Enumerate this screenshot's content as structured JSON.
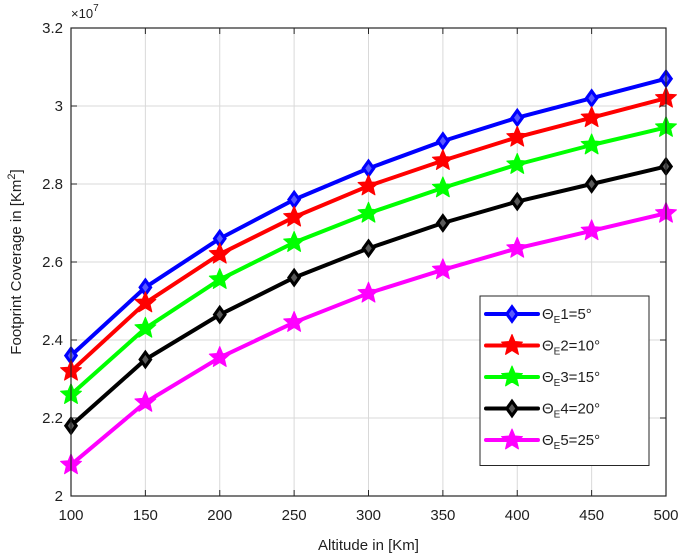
{
  "chart_data": {
    "type": "line",
    "x": [
      100,
      150,
      200,
      250,
      300,
      350,
      400,
      450,
      500
    ],
    "xlabel": "Altitude in [Km]",
    "ylabel_prefix": "Footprint Coverage in [Km",
    "ylabel_sup": "2",
    "ylabel_suffix": "]",
    "y_multiplier": {
      "base": "×10",
      "exponent": "7"
    },
    "xlim": [
      100,
      500
    ],
    "ylim": [
      2.0,
      3.2
    ],
    "xticks": [
      "100",
      "150",
      "200",
      "250",
      "300",
      "350",
      "400",
      "450",
      "500"
    ],
    "yticks": [
      "2",
      "2.2",
      "2.4",
      "2.6",
      "2.8",
      "3",
      "3.2"
    ],
    "grid": true,
    "legend_position": "lower-right",
    "series": [
      {
        "legend_prefix": "Θ",
        "legend_sub": "E",
        "legend_suffix": "1=5°",
        "color": "#0000ff",
        "marker": "diamond",
        "values": [
          2.36,
          2.535,
          2.66,
          2.76,
          2.84,
          2.91,
          2.97,
          3.02,
          3.07
        ]
      },
      {
        "legend_prefix": "Θ",
        "legend_sub": "E",
        "legend_suffix": "2=10°",
        "color": "#ff0000",
        "marker": "star",
        "values": [
          2.32,
          2.495,
          2.62,
          2.715,
          2.795,
          2.86,
          2.92,
          2.97,
          3.02
        ]
      },
      {
        "legend_prefix": "Θ",
        "legend_sub": "E",
        "legend_suffix": "3=15°",
        "color": "#00ff00",
        "marker": "star",
        "values": [
          2.26,
          2.43,
          2.555,
          2.65,
          2.725,
          2.79,
          2.85,
          2.9,
          2.945
        ]
      },
      {
        "legend_prefix": "Θ",
        "legend_sub": "E",
        "legend_suffix": "4=20°",
        "color": "#000000",
        "marker": "diamond",
        "values": [
          2.18,
          2.35,
          2.465,
          2.56,
          2.635,
          2.7,
          2.755,
          2.8,
          2.845
        ]
      },
      {
        "legend_prefix": "Θ",
        "legend_sub": "E",
        "legend_suffix": "5=25°",
        "color": "#ff00ff",
        "marker": "star",
        "values": [
          2.08,
          2.24,
          2.355,
          2.445,
          2.52,
          2.58,
          2.635,
          2.68,
          2.725
        ]
      }
    ]
  }
}
